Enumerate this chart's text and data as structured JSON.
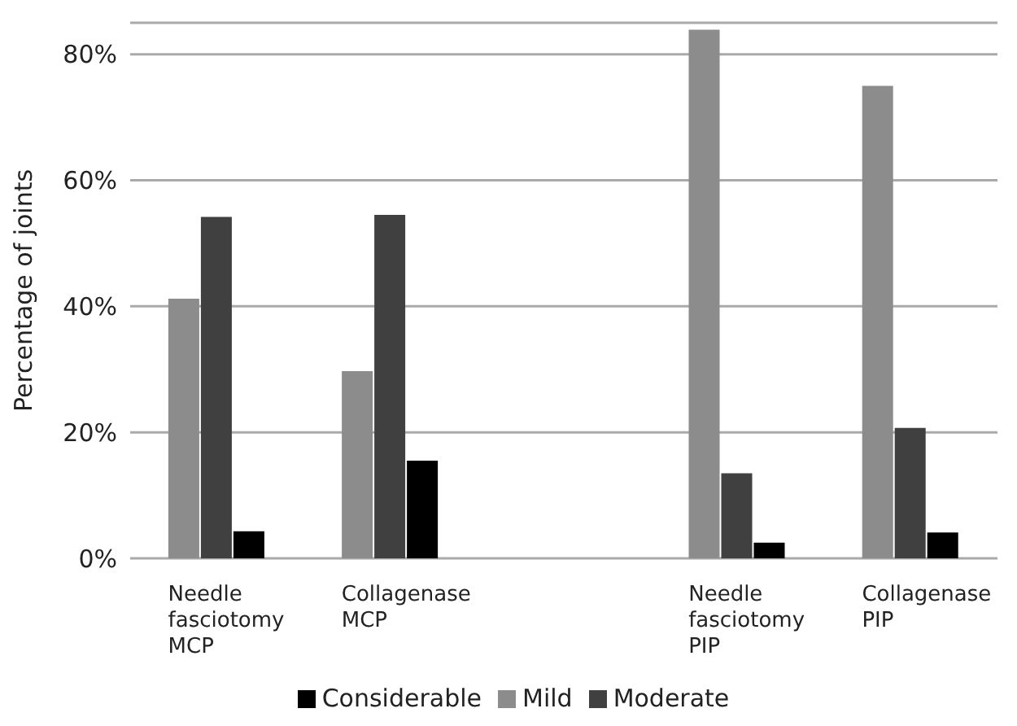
{
  "chart_data": {
    "type": "bar",
    "ylabel": "Percentage of joints",
    "categories": [
      "Needle fasciotomy MCP",
      "Collagenase MCP",
      null,
      "Needle fasciotomy PIP",
      "Collagenase PIP"
    ],
    "series": [
      {
        "name": "Mild",
        "color": "#8c8c8c",
        "values": [
          41.2,
          29.7,
          null,
          83.9,
          75
        ]
      },
      {
        "name": "Moderate",
        "color": "#404040",
        "values": [
          54.2,
          54.5,
          null,
          13.5,
          20.7
        ]
      },
      {
        "name": "Considerable",
        "color": "#000000",
        "values": [
          4.3,
          15.5,
          null,
          2.5,
          4.1
        ]
      }
    ],
    "ylim": [
      0,
      85
    ],
    "yticks": [
      {
        "value": 0,
        "label": "0%"
      },
      {
        "value": 20,
        "label": "20%"
      },
      {
        "value": 40,
        "label": "40%"
      },
      {
        "value": 60,
        "label": "60%"
      },
      {
        "value": 80,
        "label": "80%"
      }
    ],
    "grid": "y",
    "legend": "bottom"
  }
}
